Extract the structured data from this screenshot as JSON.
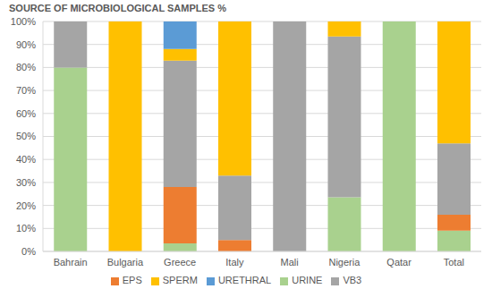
{
  "chart_data": {
    "type": "bar",
    "title": "SOURCE OF MICROBIOLOGICAL SAMPLES %",
    "stacked": true,
    "grid": true,
    "legend": "bottom",
    "categories": [
      "Bahrain",
      "Bulgaria",
      "Greece",
      "Italy",
      "Mali",
      "Nigeria",
      "Qatar",
      "Total"
    ],
    "series": [
      {
        "name": "URINE",
        "color": "#a9d18e",
        "values": [
          80,
          0,
          3.5,
          0,
          0,
          23.5,
          100,
          9
        ]
      },
      {
        "name": "EPS",
        "color": "#ed7d31",
        "values": [
          0,
          0,
          24.5,
          5,
          0,
          0,
          0,
          7
        ]
      },
      {
        "name": "VB3",
        "color": "#a5a5a5",
        "values": [
          20,
          0,
          55,
          28,
          100,
          70,
          0,
          31
        ]
      },
      {
        "name": "SPERM",
        "color": "#ffc000",
        "values": [
          0,
          100,
          5,
          67,
          0,
          6.5,
          0,
          53
        ]
      },
      {
        "name": "URETHRAL",
        "color": "#5b9bd5",
        "values": [
          0,
          0,
          12,
          0,
          0,
          0,
          0,
          0
        ]
      }
    ],
    "ylim": [
      0,
      100
    ],
    "yticks": [
      {
        "value": 0,
        "label": "0%"
      },
      {
        "value": 10,
        "label": "10%"
      },
      {
        "value": 20,
        "label": "20%"
      },
      {
        "value": 30,
        "label": "30%"
      },
      {
        "value": 40,
        "label": "40%"
      },
      {
        "value": 50,
        "label": "50%"
      },
      {
        "value": 60,
        "label": "60%"
      },
      {
        "value": 70,
        "label": "70%"
      },
      {
        "value": 80,
        "label": "80%"
      },
      {
        "value": 90,
        "label": "90%"
      },
      {
        "value": 100,
        "label": "100%"
      }
    ]
  }
}
